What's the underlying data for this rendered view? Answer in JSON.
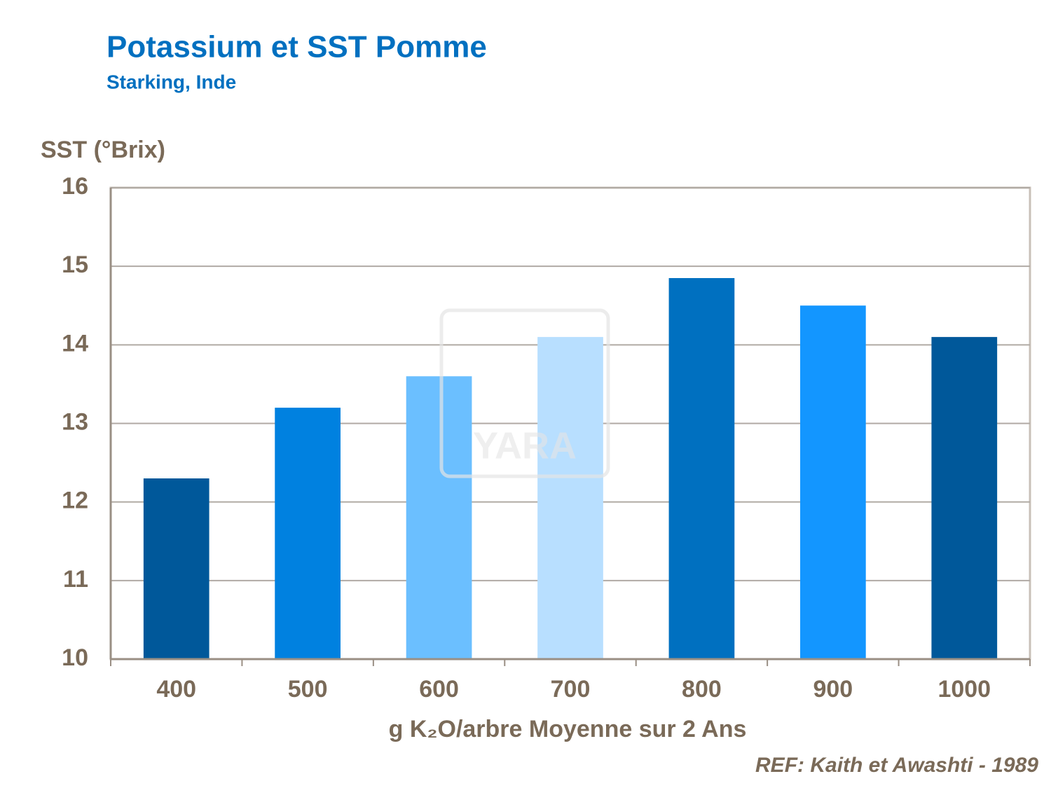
{
  "chart_data": {
    "type": "bar",
    "title": "Potassium et SST Pomme",
    "subtitle": "Starking, Inde",
    "y_label": "SST (°Brix)",
    "x_label": "g K₂O/arbre Moyenne sur 2 Ans",
    "reference": "REF: Kaith et Awashti - 1989",
    "watermark": "YARA",
    "categories": [
      "400",
      "500",
      "600",
      "700",
      "800",
      "900",
      "1000"
    ],
    "values": [
      12.3,
      13.2,
      13.6,
      14.1,
      14.85,
      14.5,
      14.1
    ],
    "colors": [
      "#00589a",
      "#0081e0",
      "#6bbfff",
      "#b8dfff",
      "#0070c0",
      "#1396ff",
      "#00589a"
    ],
    "ylim": [
      10,
      16
    ],
    "yticks": [
      10,
      11,
      12,
      13,
      14,
      15,
      16
    ],
    "grid": true
  }
}
